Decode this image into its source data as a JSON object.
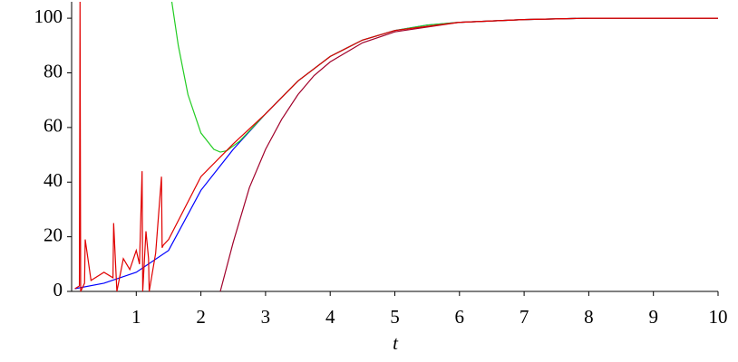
{
  "chart_data": {
    "type": "line",
    "x_label": "t",
    "xlim": [
      0,
      10
    ],
    "ylim": [
      0,
      106
    ],
    "xticks": [
      1,
      2,
      3,
      4,
      5,
      6,
      7,
      8,
      9,
      10
    ],
    "yticks": [
      0,
      20,
      40,
      60,
      80,
      100
    ],
    "series": [
      {
        "color": "#0000ff",
        "x": [
          0.05,
          0.5,
          1,
          1.5,
          2,
          2.5,
          3,
          3.5,
          4,
          4.5,
          5,
          5.5,
          6,
          7,
          8,
          9,
          10
        ],
        "values": [
          1,
          3,
          7,
          15,
          37,
          52,
          65,
          77,
          86,
          92,
          95.5,
          97.5,
          98.5,
          99.5,
          100,
          100,
          100
        ]
      },
      {
        "color": "#22cc22",
        "x": [
          1.55,
          1.65,
          1.8,
          2,
          2.2,
          2.3,
          2.4,
          2.6,
          2.8,
          3,
          3.5,
          4,
          4.5,
          5,
          5.5,
          6,
          7,
          8,
          9,
          10
        ],
        "values": [
          106,
          90,
          72,
          58,
          52,
          51,
          51.5,
          55,
          60,
          65,
          77,
          86,
          92,
          95.5,
          97.5,
          98.5,
          99.5,
          100,
          100,
          100
        ]
      },
      {
        "color": "#a0002a",
        "x": [
          2.3,
          2.5,
          2.75,
          3,
          3.25,
          3.5,
          3.75,
          4,
          4.5,
          5,
          6,
          7,
          8,
          9,
          10
        ],
        "values": [
          0,
          18,
          38,
          52,
          63,
          72,
          79,
          84,
          91,
          95,
          98.5,
          99.5,
          100,
          100,
          100
        ]
      },
      {
        "color": "#e00000",
        "x": [
          0.05,
          0.12,
          0.13,
          0.14,
          0.2,
          0.21,
          0.3,
          0.5,
          0.64,
          0.65,
          0.7,
          0.8,
          0.9,
          1.0,
          1.05,
          1.09,
          1.1,
          1.15,
          1.19,
          1.2,
          1.3,
          1.39,
          1.4,
          1.42,
          1.5,
          2,
          2.5,
          3,
          3.5,
          4,
          4.5,
          5,
          6,
          7,
          8,
          9,
          10
        ],
        "values": [
          1,
          2,
          106,
          0,
          3,
          19,
          4,
          7,
          5,
          25,
          0,
          12,
          8,
          15,
          10,
          44,
          0,
          22,
          12,
          0,
          14,
          42,
          16,
          17,
          19,
          42,
          54,
          65,
          77,
          86,
          92,
          95.5,
          98.5,
          99.5,
          100,
          100,
          100
        ]
      }
    ]
  }
}
